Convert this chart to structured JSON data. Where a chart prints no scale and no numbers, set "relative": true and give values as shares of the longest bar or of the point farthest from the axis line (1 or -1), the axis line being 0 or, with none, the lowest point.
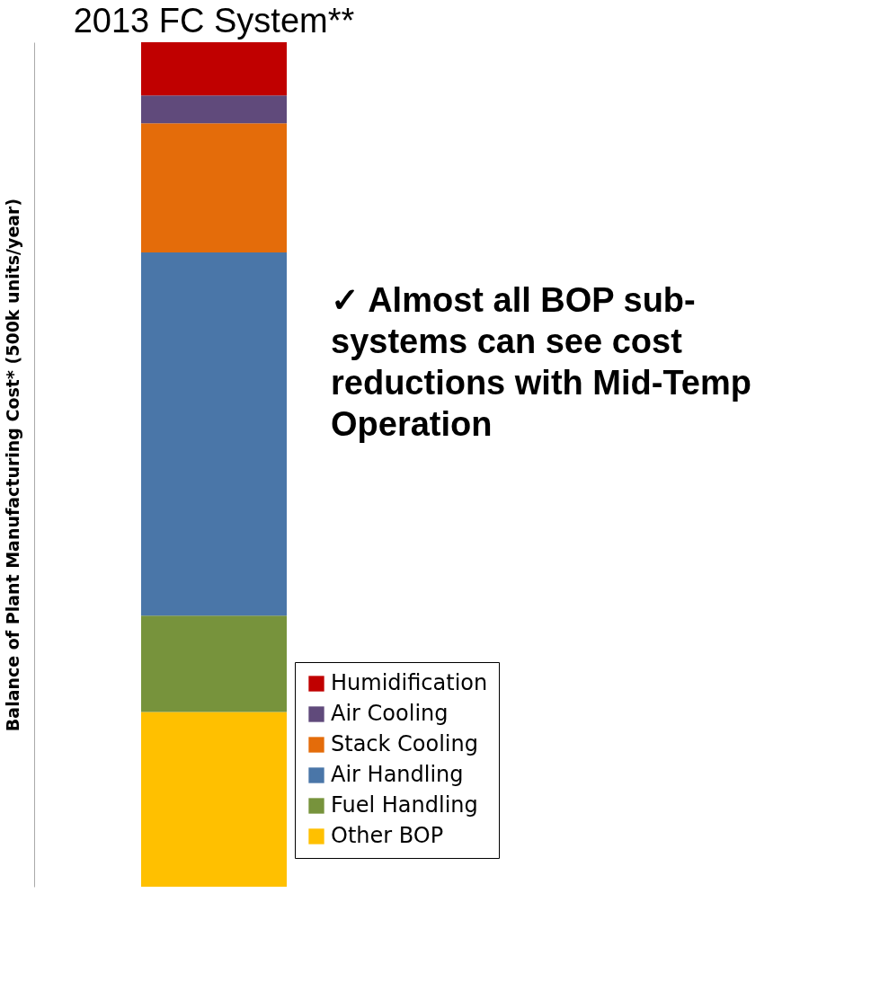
{
  "chart_data": {
    "type": "bar",
    "stacked": true,
    "relative": true,
    "categories": [
      "2013 FC System**"
    ],
    "ylabel": "Balance of Plant Manufacturing Cost* (500k units/year)",
    "series": [
      {
        "name": "Other BOP",
        "color": "#ffc000",
        "values": [
          0.207
        ]
      },
      {
        "name": "Fuel Handling",
        "color": "#77933c",
        "values": [
          0.114
        ]
      },
      {
        "name": "Air Handling",
        "color": "#4a76a8",
        "values": [
          0.43
        ]
      },
      {
        "name": "Stack Cooling",
        "color": "#e46c0a",
        "values": [
          0.153
        ]
      },
      {
        "name": "Air Cooling",
        "color": "#604a7b",
        "values": [
          0.033
        ]
      },
      {
        "name": "Humidification",
        "color": "#c00000",
        "values": [
          0.063
        ]
      }
    ],
    "legend": "bottom right",
    "grid": false,
    "annotations": [
      "✓ Almost all BOP sub-\nsystems can see cost\nreductions with Mid-Temp\nOperation"
    ]
  }
}
